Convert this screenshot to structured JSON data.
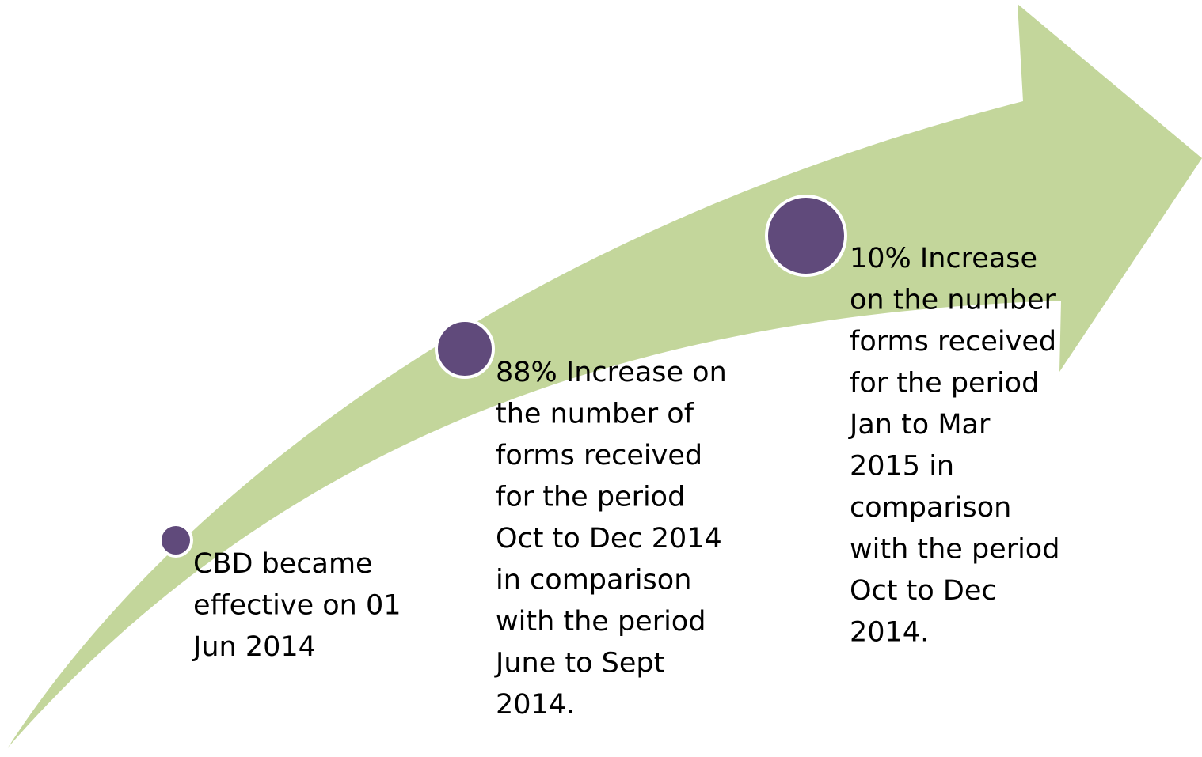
{
  "nodes": [
    {
      "lines": [
        "CBD became",
        "effective on 01",
        "Jun 2014"
      ]
    },
    {
      "lines": [
        "88% Increase on",
        "the number of",
        "forms received",
        "for the period",
        "Oct to Dec 2014",
        "in comparison",
        "with the period",
        "June to Sept",
        "2014."
      ]
    },
    {
      "lines": [
        "10% Increase",
        "on the number",
        "forms received",
        "for the period",
        "Jan to Mar",
        "2015 in",
        "comparison",
        "with the period",
        "Oct to Dec",
        "2014."
      ]
    }
  ]
}
